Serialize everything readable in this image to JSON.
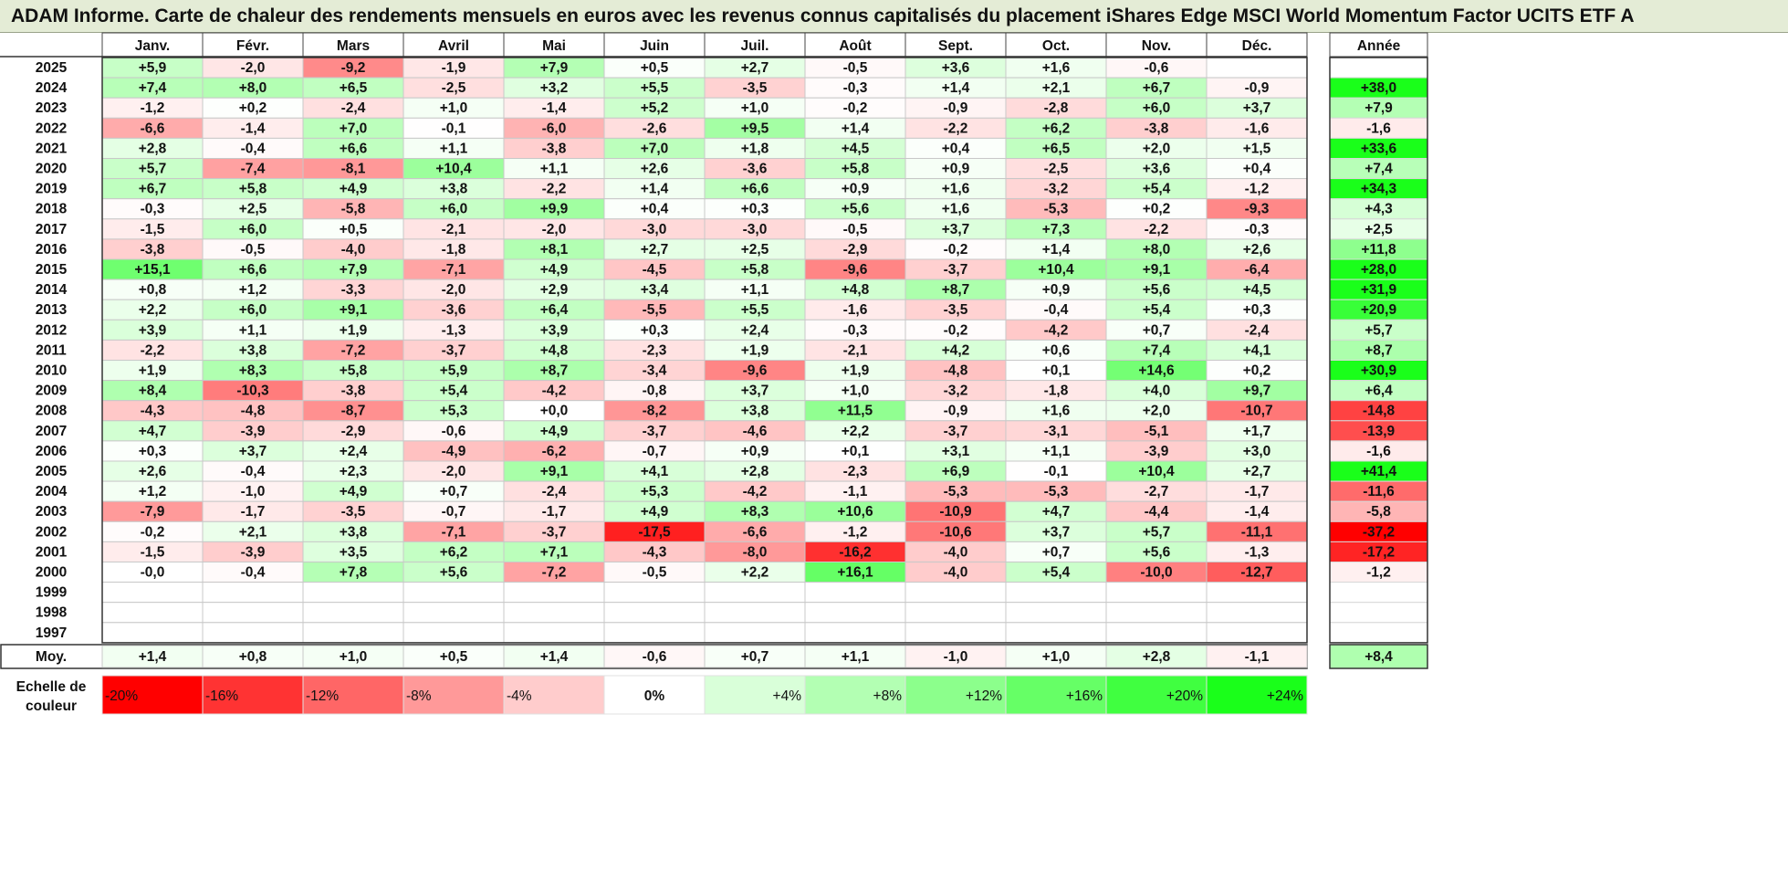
{
  "title": "ADAM Informe. Carte de chaleur des rendements mensuels en euros avec les revenus connus capitalisés du placement iShares Edge MSCI World Momentum Factor UCITS ETF A",
  "chart_data": {
    "type": "heatmap",
    "columns": [
      "Janv.",
      "Févr.",
      "Mars",
      "Avril",
      "Mai",
      "Juin",
      "Juil.",
      "Août",
      "Sept.",
      "Oct.",
      "Nov.",
      "Déc."
    ],
    "year_column_label": "Année",
    "average_row_label": "Moy.",
    "rows": [
      {
        "year": "2025",
        "months": [
          "+5,9",
          "-2,0",
          "-9,2",
          "-1,9",
          "+7,9",
          "+0,5",
          "+2,7",
          "-0,5",
          "+3,6",
          "+1,6",
          "-0,6",
          ""
        ],
        "annual": ""
      },
      {
        "year": "2024",
        "months": [
          "+7,4",
          "+8,0",
          "+6,5",
          "-2,5",
          "+3,2",
          "+5,5",
          "-3,5",
          "-0,3",
          "+1,4",
          "+2,1",
          "+6,7",
          "-0,9"
        ],
        "annual": "+38,0"
      },
      {
        "year": "2023",
        "months": [
          "-1,2",
          "+0,2",
          "-2,4",
          "+1,0",
          "-1,4",
          "+5,2",
          "+1,0",
          "-0,2",
          "-0,9",
          "-2,8",
          "+6,0",
          "+3,7"
        ],
        "annual": "+7,9"
      },
      {
        "year": "2022",
        "months": [
          "-6,6",
          "-1,4",
          "+7,0",
          "-0,1",
          "-6,0",
          "-2,6",
          "+9,5",
          "+1,4",
          "-2,2",
          "+6,2",
          "-3,8",
          "-1,6"
        ],
        "annual": "-1,6"
      },
      {
        "year": "2021",
        "months": [
          "+2,8",
          "-0,4",
          "+6,6",
          "+1,1",
          "-3,8",
          "+7,0",
          "+1,8",
          "+4,5",
          "+0,4",
          "+6,5",
          "+2,0",
          "+1,5"
        ],
        "annual": "+33,6"
      },
      {
        "year": "2020",
        "months": [
          "+5,7",
          "-7,4",
          "-8,1",
          "+10,4",
          "+1,1",
          "+2,6",
          "-3,6",
          "+5,8",
          "+0,9",
          "-2,5",
          "+3,6",
          "+0,4"
        ],
        "annual": "+7,4"
      },
      {
        "year": "2019",
        "months": [
          "+6,7",
          "+5,8",
          "+4,9",
          "+3,8",
          "-2,2",
          "+1,4",
          "+6,6",
          "+0,9",
          "+1,6",
          "-3,2",
          "+5,4",
          "-1,2"
        ],
        "annual": "+34,3"
      },
      {
        "year": "2018",
        "months": [
          "-0,3",
          "+2,5",
          "-5,8",
          "+6,0",
          "+9,9",
          "+0,4",
          "+0,3",
          "+5,6",
          "+1,6",
          "-5,3",
          "+0,2",
          "-9,3"
        ],
        "annual": "+4,3"
      },
      {
        "year": "2017",
        "months": [
          "-1,5",
          "+6,0",
          "+0,5",
          "-2,1",
          "-2,0",
          "-3,0",
          "-3,0",
          "-0,5",
          "+3,7",
          "+7,3",
          "-2,2",
          "-0,3"
        ],
        "annual": "+2,5"
      },
      {
        "year": "2016",
        "months": [
          "-3,8",
          "-0,5",
          "-4,0",
          "-1,8",
          "+8,1",
          "+2,7",
          "+2,5",
          "-2,9",
          "-0,2",
          "+1,4",
          "+8,0",
          "+2,6"
        ],
        "annual": "+11,8"
      },
      {
        "year": "2015",
        "months": [
          "+15,1",
          "+6,6",
          "+7,9",
          "-7,1",
          "+4,9",
          "-4,5",
          "+5,8",
          "-9,6",
          "-3,7",
          "+10,4",
          "+9,1",
          "-6,4"
        ],
        "annual": "+28,0"
      },
      {
        "year": "2014",
        "months": [
          "+0,8",
          "+1,2",
          "-3,3",
          "-2,0",
          "+2,9",
          "+3,4",
          "+1,1",
          "+4,8",
          "+8,7",
          "+0,9",
          "+5,6",
          "+4,5"
        ],
        "annual": "+31,9"
      },
      {
        "year": "2013",
        "months": [
          "+2,2",
          "+6,0",
          "+9,1",
          "-3,6",
          "+6,4",
          "-5,5",
          "+5,5",
          "-1,6",
          "-3,5",
          "-0,4",
          "+5,4",
          "+0,3"
        ],
        "annual": "+20,9"
      },
      {
        "year": "2012",
        "months": [
          "+3,9",
          "+1,1",
          "+1,9",
          "-1,3",
          "+3,9",
          "+0,3",
          "+2,4",
          "-0,3",
          "-0,2",
          "-4,2",
          "+0,7",
          "-2,4"
        ],
        "annual": "+5,7"
      },
      {
        "year": "2011",
        "months": [
          "-2,2",
          "+3,8",
          "-7,2",
          "-3,7",
          "+4,8",
          "-2,3",
          "+1,9",
          "-2,1",
          "+4,2",
          "+0,6",
          "+7,4",
          "+4,1"
        ],
        "annual": "+8,7"
      },
      {
        "year": "2010",
        "months": [
          "+1,9",
          "+8,3",
          "+5,8",
          "+5,9",
          "+8,7",
          "-3,4",
          "-9,6",
          "+1,9",
          "-4,8",
          "+0,1",
          "+14,6",
          "+0,2"
        ],
        "annual": "+30,9"
      },
      {
        "year": "2009",
        "months": [
          "+8,4",
          "-10,3",
          "-3,8",
          "+5,4",
          "-4,2",
          "-0,8",
          "+3,7",
          "+1,0",
          "-3,2",
          "-1,8",
          "+4,0",
          "+9,7"
        ],
        "annual": "+6,4"
      },
      {
        "year": "2008",
        "months": [
          "-4,3",
          "-4,8",
          "-8,7",
          "+5,3",
          "+0,0",
          "-8,2",
          "+3,8",
          "+11,5",
          "-0,9",
          "+1,6",
          "+2,0",
          "-10,7"
        ],
        "annual": "-14,8"
      },
      {
        "year": "2007",
        "months": [
          "+4,7",
          "-3,9",
          "-2,9",
          "-0,6",
          "+4,9",
          "-3,7",
          "-4,6",
          "+2,2",
          "-3,7",
          "-3,1",
          "-5,1",
          "+1,7"
        ],
        "annual": "-13,9"
      },
      {
        "year": "2006",
        "months": [
          "+0,3",
          "+3,7",
          "+2,4",
          "-4,9",
          "-6,2",
          "-0,7",
          "+0,9",
          "+0,1",
          "+3,1",
          "+1,1",
          "-3,9",
          "+3,0"
        ],
        "annual": "-1,6"
      },
      {
        "year": "2005",
        "months": [
          "+2,6",
          "-0,4",
          "+2,3",
          "-2,0",
          "+9,1",
          "+4,1",
          "+2,8",
          "-2,3",
          "+6,9",
          "-0,1",
          "+10,4",
          "+2,7"
        ],
        "annual": "+41,4"
      },
      {
        "year": "2004",
        "months": [
          "+1,2",
          "-1,0",
          "+4,9",
          "+0,7",
          "-2,4",
          "+5,3",
          "-4,2",
          "-1,1",
          "-5,3",
          "-5,3",
          "-2,7",
          "-1,7"
        ],
        "annual": "-11,6"
      },
      {
        "year": "2003",
        "months": [
          "-7,9",
          "-1,7",
          "-3,5",
          "-0,7",
          "-1,7",
          "+4,9",
          "+8,3",
          "+10,6",
          "-10,9",
          "+4,7",
          "-4,4",
          "-1,4"
        ],
        "annual": "-5,8"
      },
      {
        "year": "2002",
        "months": [
          "-0,2",
          "+2,1",
          "+3,8",
          "-7,1",
          "-3,7",
          "-17,5",
          "-6,6",
          "-1,2",
          "-10,6",
          "+3,7",
          "+5,7",
          "-11,1"
        ],
        "annual": "-37,2"
      },
      {
        "year": "2001",
        "months": [
          "-1,5",
          "-3,9",
          "+3,5",
          "+6,2",
          "+7,1",
          "-4,3",
          "-8,0",
          "-16,2",
          "-4,0",
          "+0,7",
          "+5,6",
          "-1,3"
        ],
        "annual": "-17,2"
      },
      {
        "year": "2000",
        "months": [
          "-0,0",
          "-0,4",
          "+7,8",
          "+5,6",
          "-7,2",
          "-0,5",
          "+2,2",
          "+16,1",
          "-4,0",
          "+5,4",
          "-10,0",
          "-12,7"
        ],
        "annual": "-1,2"
      },
      {
        "year": "1999",
        "months": [
          "",
          "",
          "",
          "",
          "",
          "",
          "",
          "",
          "",
          "",
          "",
          ""
        ],
        "annual": ""
      },
      {
        "year": "1998",
        "months": [
          "",
          "",
          "",
          "",
          "",
          "",
          "",
          "",
          "",
          "",
          "",
          ""
        ],
        "annual": ""
      },
      {
        "year": "1997",
        "months": [
          "",
          "",
          "",
          "",
          "",
          "",
          "",
          "",
          "",
          "",
          "",
          ""
        ],
        "annual": ""
      }
    ],
    "averages": [
      "+1,4",
      "+0,8",
      "+1,0",
      "+0,5",
      "+1,4",
      "-0,6",
      "+0,7",
      "+1,1",
      "-1,0",
      "+1,0",
      "+2,8",
      "-1,1"
    ],
    "average_annual": "+8,4",
    "scale": {
      "label_line1": "Echelle de",
      "label_line2": "couleur",
      "entries": [
        {
          "label": "-20%",
          "value": -20,
          "color": "#ff0000"
        },
        {
          "label": "-16%",
          "value": -16,
          "color": "#ff3333"
        },
        {
          "label": "-12%",
          "value": -12,
          "color": "#ff6666"
        },
        {
          "label": "-8%",
          "value": -8,
          "color": "#ff9999"
        },
        {
          "label": "-4%",
          "value": -4,
          "color": "#ffcccc"
        },
        {
          "label": "0%",
          "value": 0,
          "color": "#ffffff"
        },
        {
          "label": "+4%",
          "value": 4,
          "color": "#d9ffd9"
        },
        {
          "label": "+8%",
          "value": 8,
          "color": "#b3ffb3"
        },
        {
          "label": "+12%",
          "value": 12,
          "color": "#8cff8c"
        },
        {
          "label": "+16%",
          "value": 16,
          "color": "#66ff66"
        },
        {
          "label": "+20%",
          "value": 20,
          "color": "#40ff40"
        },
        {
          "label": "+24%",
          "value": 24,
          "color": "#1aff1a"
        }
      ]
    }
  }
}
